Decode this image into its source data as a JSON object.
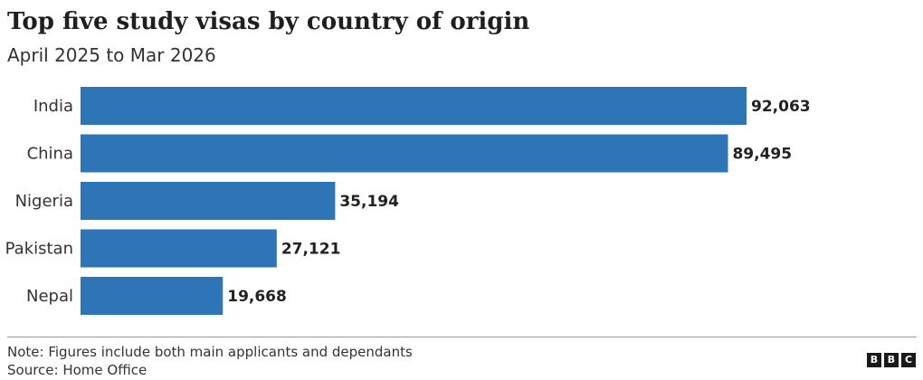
{
  "header": {
    "title": "Top five study visas by country of origin",
    "subtitle": "April 2025 to Mar 2026"
  },
  "chart_data": {
    "type": "bar",
    "orientation": "horizontal",
    "title": "Top five study visas by country of origin",
    "subtitle": "April 2025 to Mar 2026",
    "categories": [
      "India",
      "China",
      "Nigeria",
      "Pakistan",
      "Nepal"
    ],
    "values": [
      92063,
      89495,
      35194,
      27121,
      19668
    ],
    "value_labels": [
      "92,063",
      "89,495",
      "35,194",
      "27,121",
      "19,668"
    ],
    "bar_color": "#2d75b6",
    "grid": false,
    "legend": "none"
  },
  "footer": {
    "note": "Note: Figures include both main applicants and dependants",
    "source": "Source: Home Office",
    "logo_letters": [
      "B",
      "B",
      "C"
    ]
  }
}
